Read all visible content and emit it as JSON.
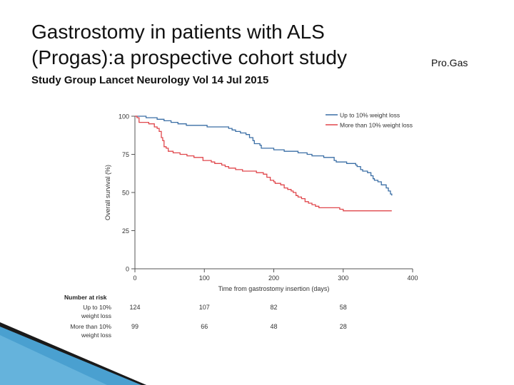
{
  "slide": {
    "title_line1": "Gastrostomy in patients with ALS",
    "title_line2": "(Progas):a prospective cohort study",
    "title_side": "Pro.Gas",
    "subtitle": "Study Group Lancet Neurology Vol 14 Jul 2015"
  },
  "colors": {
    "series1": "#3a6ea5",
    "series2": "#e0474c",
    "corner_blue": "#2a8fc8",
    "corner_dark": "#1a1a1a"
  },
  "chart_data": {
    "type": "line",
    "xlabel": "Time from gastrostomy insertion (days)",
    "ylabel": "Overall survival (%)",
    "xlim": [
      0,
      400
    ],
    "ylim": [
      0,
      100
    ],
    "xticks": [
      0,
      100,
      200,
      300,
      400
    ],
    "yticks": [
      0,
      25,
      50,
      75,
      100
    ],
    "grid": false,
    "legend_position": "top-right",
    "series": [
      {
        "name": "Up to 10% weight loss",
        "points": [
          [
            0,
            100
          ],
          [
            15,
            100
          ],
          [
            16,
            99
          ],
          [
            30,
            99
          ],
          [
            32,
            98
          ],
          [
            40,
            98
          ],
          [
            42,
            97
          ],
          [
            50,
            97
          ],
          [
            52,
            96
          ],
          [
            60,
            96
          ],
          [
            62,
            95
          ],
          [
            72,
            95
          ],
          [
            74,
            94
          ],
          [
            100,
            94
          ],
          [
            104,
            93
          ],
          [
            125,
            93
          ],
          [
            135,
            92
          ],
          [
            140,
            91
          ],
          [
            145,
            90
          ],
          [
            150,
            90
          ],
          [
            152,
            89
          ],
          [
            160,
            88
          ],
          [
            165,
            86
          ],
          [
            170,
            84
          ],
          [
            172,
            82
          ],
          [
            180,
            81
          ],
          [
            182,
            79
          ],
          [
            195,
            79
          ],
          [
            200,
            78
          ],
          [
            210,
            78
          ],
          [
            215,
            77
          ],
          [
            230,
            77
          ],
          [
            235,
            76
          ],
          [
            245,
            76
          ],
          [
            248,
            75
          ],
          [
            255,
            74
          ],
          [
            270,
            74
          ],
          [
            272,
            73
          ],
          [
            285,
            73
          ],
          [
            287,
            71
          ],
          [
            290,
            70
          ],
          [
            300,
            70
          ],
          [
            305,
            69
          ],
          [
            315,
            69
          ],
          [
            318,
            68
          ],
          [
            320,
            67
          ],
          [
            325,
            65
          ],
          [
            328,
            64
          ],
          [
            335,
            63
          ],
          [
            340,
            61
          ],
          [
            343,
            59
          ],
          [
            345,
            58
          ],
          [
            350,
            57
          ],
          [
            355,
            55
          ],
          [
            362,
            53
          ],
          [
            365,
            51
          ],
          [
            368,
            49
          ],
          [
            370,
            48
          ]
        ]
      },
      {
        "name": "More than 10% weight loss",
        "points": [
          [
            0,
            100
          ],
          [
            3,
            99
          ],
          [
            6,
            96
          ],
          [
            18,
            96
          ],
          [
            20,
            95
          ],
          [
            25,
            95
          ],
          [
            28,
            93
          ],
          [
            32,
            92
          ],
          [
            35,
            90
          ],
          [
            38,
            86
          ],
          [
            40,
            84
          ],
          [
            42,
            80
          ],
          [
            45,
            79
          ],
          [
            48,
            77
          ],
          [
            52,
            77
          ],
          [
            55,
            76
          ],
          [
            62,
            76
          ],
          [
            65,
            75
          ],
          [
            72,
            75
          ],
          [
            75,
            74
          ],
          [
            82,
            74
          ],
          [
            85,
            73
          ],
          [
            95,
            73
          ],
          [
            98,
            71
          ],
          [
            105,
            71
          ],
          [
            110,
            70
          ],
          [
            115,
            69
          ],
          [
            120,
            69
          ],
          [
            125,
            68
          ],
          [
            130,
            67
          ],
          [
            135,
            66
          ],
          [
            140,
            66
          ],
          [
            145,
            65
          ],
          [
            150,
            65
          ],
          [
            155,
            64
          ],
          [
            170,
            64
          ],
          [
            175,
            63
          ],
          [
            180,
            63
          ],
          [
            185,
            62
          ],
          [
            190,
            60
          ],
          [
            195,
            58
          ],
          [
            200,
            57
          ],
          [
            202,
            56
          ],
          [
            210,
            55
          ],
          [
            215,
            53
          ],
          [
            220,
            52
          ],
          [
            225,
            51
          ],
          [
            228,
            50
          ],
          [
            232,
            48
          ],
          [
            235,
            47
          ],
          [
            240,
            46
          ],
          [
            245,
            44
          ],
          [
            250,
            43
          ],
          [
            255,
            42
          ],
          [
            260,
            41
          ],
          [
            265,
            40
          ],
          [
            280,
            40
          ],
          [
            290,
            40
          ],
          [
            295,
            39
          ],
          [
            300,
            38
          ],
          [
            305,
            38
          ],
          [
            330,
            38
          ],
          [
            370,
            38
          ]
        ]
      }
    ],
    "risk_table": {
      "header": "Number at risk",
      "times": [
        0,
        100,
        200,
        300
      ],
      "rows": [
        {
          "label_line1": "Up to 10%",
          "label_line2": "weight loss",
          "counts": [
            "124",
            "107",
            "82",
            "58"
          ]
        },
        {
          "label_line1": "More than 10%",
          "label_line2": "weight loss",
          "counts": [
            "99",
            "66",
            "48",
            "28"
          ]
        }
      ]
    }
  }
}
